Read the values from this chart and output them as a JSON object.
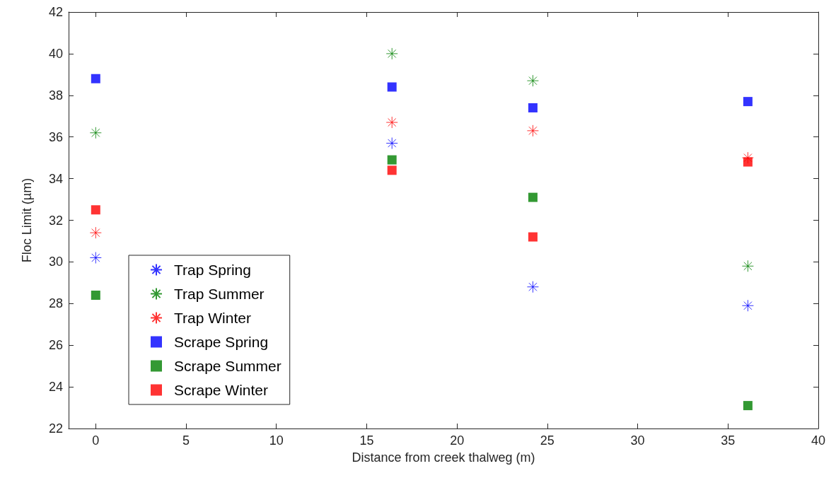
{
  "chart_data": {
    "type": "scatter",
    "xlabel": "Distance from creek thalweg (m)",
    "ylabel": "Floc Limit (µm)",
    "xlim": [
      -1.5,
      40
    ],
    "xticks": [
      0,
      5,
      10,
      15,
      20,
      25,
      30,
      35,
      40
    ],
    "ylim": [
      22,
      42
    ],
    "yticks": [
      22,
      24,
      26,
      28,
      30,
      32,
      34,
      36,
      38,
      40,
      42
    ],
    "grid": false,
    "legend": "bottom left",
    "x": [
      0,
      16.4,
      24.2,
      36.1
    ],
    "series": [
      {
        "name": "Trap Spring",
        "color": "#0000ff",
        "marker": "cross",
        "values": [
          30.2,
          35.7,
          28.8,
          27.9
        ]
      },
      {
        "name": "Trap Summer",
        "color": "#008000",
        "marker": "cross",
        "values": [
          36.2,
          40.0,
          38.7,
          29.8
        ]
      },
      {
        "name": "Trap Winter",
        "color": "#ff0000",
        "marker": "cross",
        "values": [
          31.4,
          36.7,
          36.3,
          35.0
        ]
      },
      {
        "name": "Scrape Spring",
        "color": "#0000ff",
        "marker": "square",
        "values": [
          38.8,
          38.4,
          37.4,
          37.7
        ]
      },
      {
        "name": "Scrape Summer",
        "color": "#008000",
        "marker": "square",
        "values": [
          28.4,
          34.9,
          33.1,
          23.1
        ]
      },
      {
        "name": "Scrape Winter",
        "color": "#ff0000",
        "marker": "square",
        "values": [
          32.5,
          34.4,
          31.2,
          34.8
        ]
      }
    ]
  }
}
